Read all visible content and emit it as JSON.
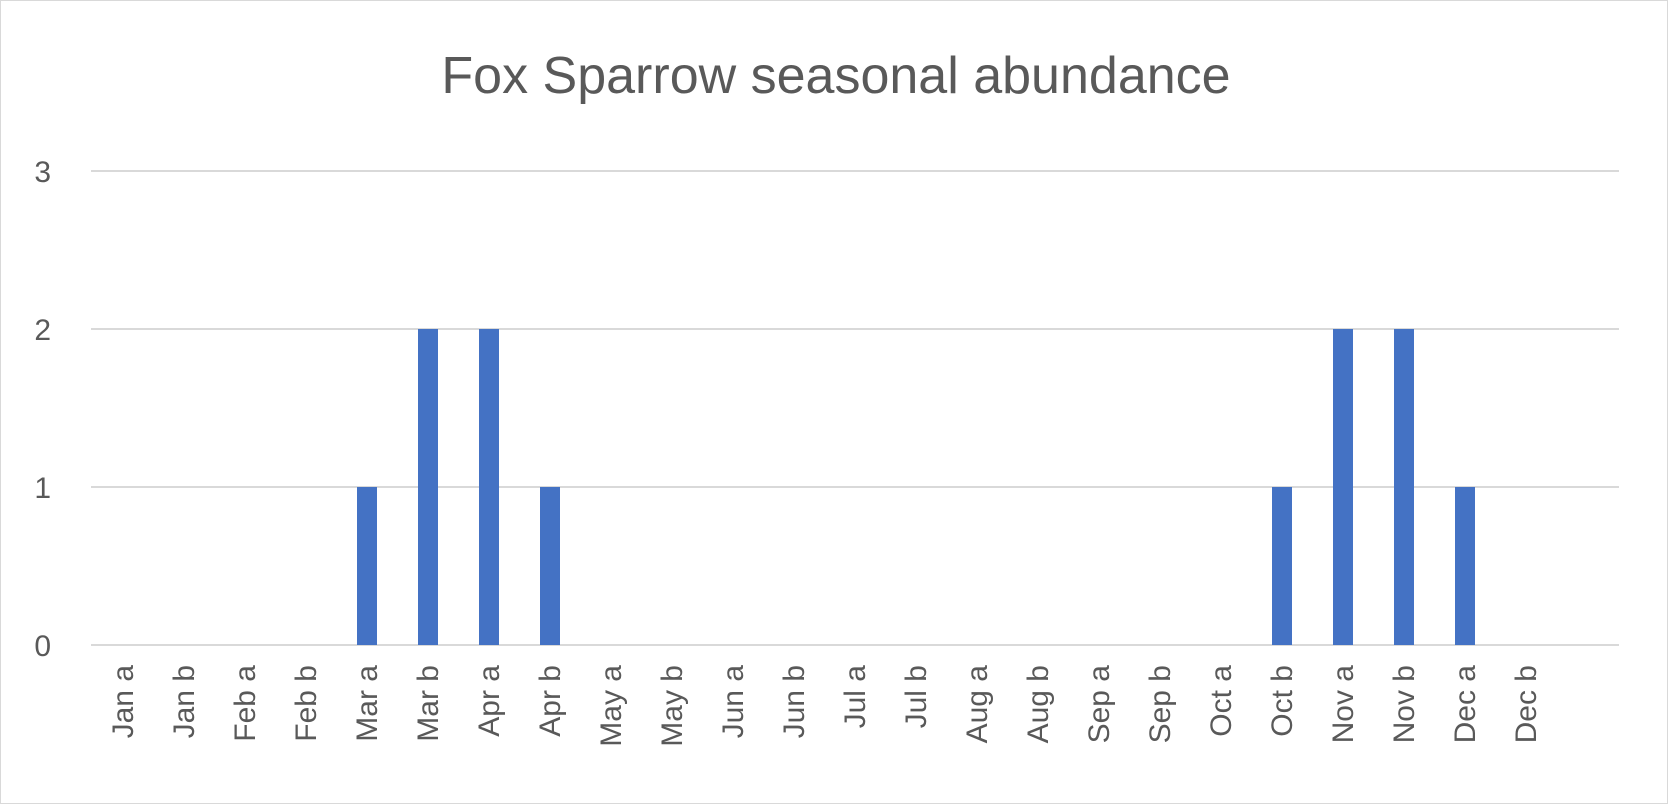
{
  "chart_data": {
    "type": "bar",
    "title": "Fox Sparrow seasonal abundance",
    "xlabel": "",
    "ylabel": "",
    "categories": [
      "Jan a",
      "Jan b",
      "Feb a",
      "Feb b",
      "Mar a",
      "Mar b",
      "Apr a",
      "Apr b",
      "May a",
      "May b",
      "Jun a",
      "Jun b",
      "Jul a",
      "Jul b",
      "Aug a",
      "Aug b",
      "Sep a",
      "Sep b",
      "Oct a",
      "Oct b",
      "Nov a",
      "Nov b",
      "Dec a",
      "Dec b"
    ],
    "values": [
      0,
      0,
      0,
      0,
      1,
      2,
      2,
      1,
      0,
      0,
      0,
      0,
      0,
      0,
      0,
      0,
      0,
      0,
      0,
      1,
      2,
      2,
      1,
      0
    ],
    "ylim": [
      0,
      3
    ],
    "yticks": [
      0,
      1,
      2,
      3
    ],
    "grid": true,
    "legend": "none",
    "bar_color": "#4472c4"
  }
}
